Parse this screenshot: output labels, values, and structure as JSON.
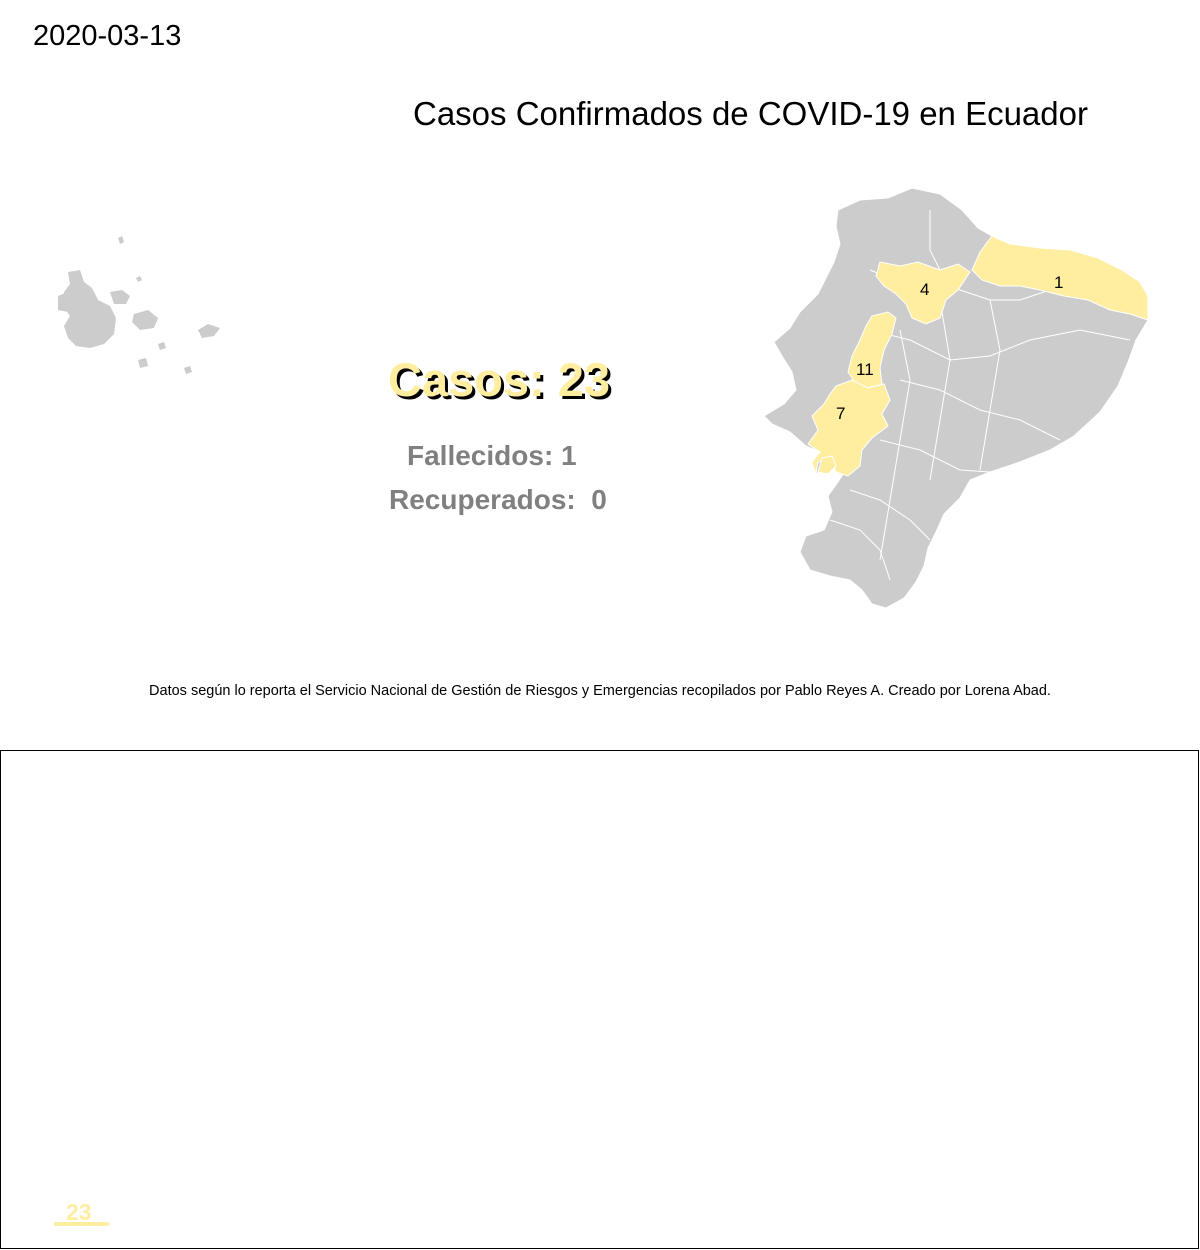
{
  "header": {
    "date": "2020-03-13",
    "title": "Casos Confirmados de COVID-19 en Ecuador"
  },
  "summary": {
    "cases_text": "Casos: 23",
    "deaths_text": "Fallecidos: 1",
    "recovered_text": "Recuperados:  0"
  },
  "map": {
    "province_labels": [
      "4",
      "1",
      "11",
      "7"
    ],
    "colors": {
      "no_cases": "#cccccc",
      "with_cases": "#ffeda0",
      "borders": "#ffffff"
    }
  },
  "footer": {
    "caption": "Datos según lo reporta el Servicio Nacional de Gestión de Riesgos y Emergencias recopilados por Pablo Reyes A. Creado por Lorena Abad."
  },
  "timeline": {
    "bar_value_label": "23"
  }
}
